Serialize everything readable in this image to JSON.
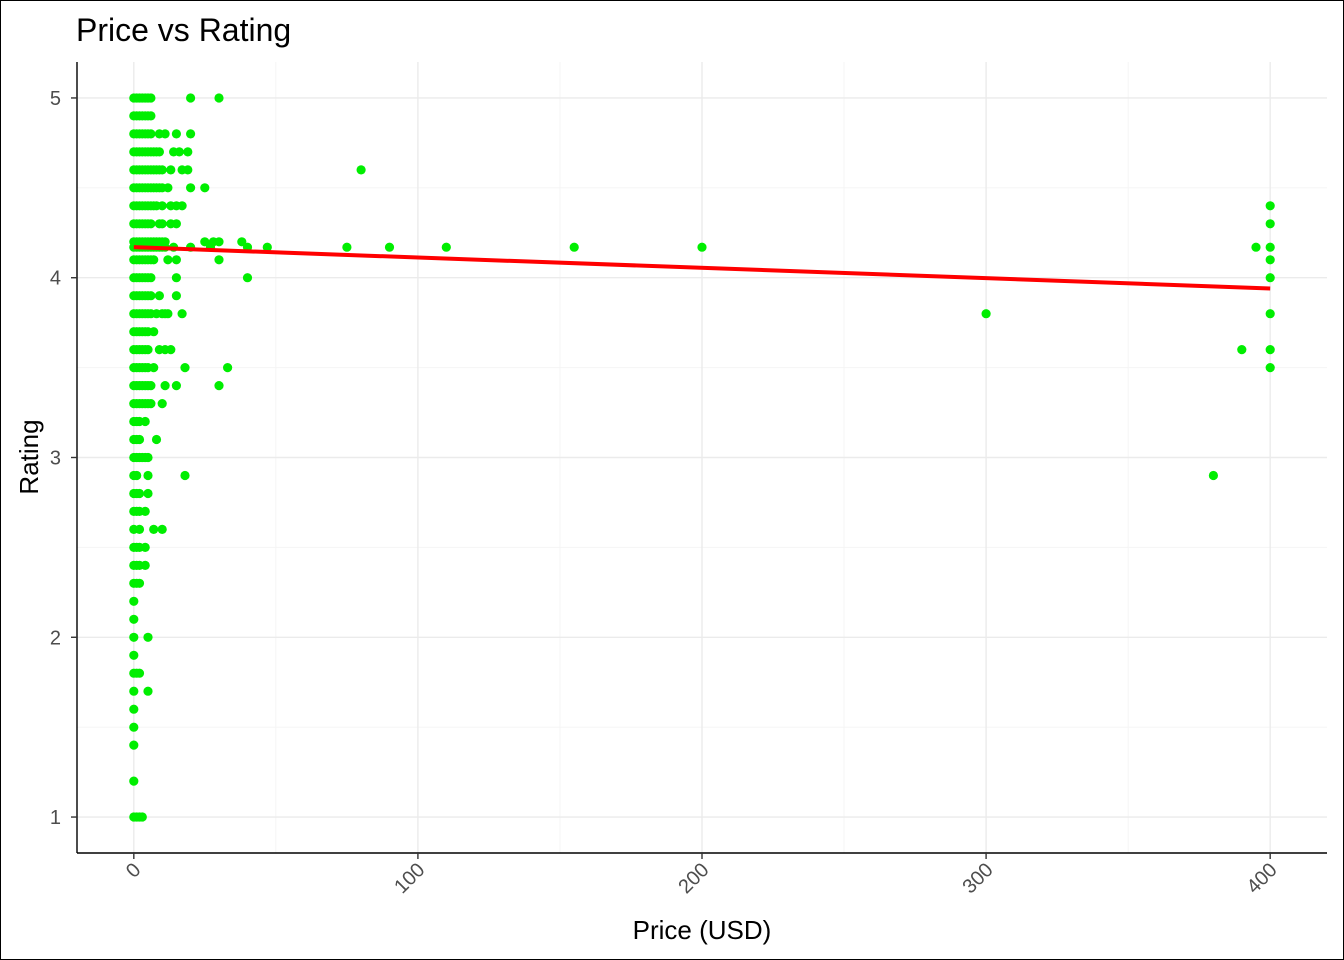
{
  "chart_data": {
    "type": "scatter",
    "title": "Price vs Rating",
    "xlabel": "Price (USD)",
    "ylabel": "Rating",
    "xlim": [
      -20,
      420
    ],
    "ylim": [
      0.8,
      5.2
    ],
    "x_ticks": [
      0,
      100,
      200,
      300,
      400
    ],
    "y_ticks": [
      1,
      2,
      3,
      4,
      5
    ],
    "x_tick_labels": [
      "0",
      "100",
      "200",
      "300",
      "400"
    ],
    "y_tick_labels": [
      "1",
      "2",
      "3",
      "4",
      "5"
    ],
    "grid": true,
    "legend": "none",
    "point_color": "#00EE00",
    "trend_color": "#FF0000",
    "trend_line": {
      "x": [
        0,
        400
      ],
      "y": [
        4.17,
        3.94
      ]
    },
    "zero_price_ratings": [
      1.0,
      1.2,
      1.4,
      1.5,
      1.6,
      1.7,
      1.8,
      1.9,
      2.0,
      2.1,
      2.2,
      2.3,
      2.4,
      2.5,
      2.6,
      2.7,
      2.8,
      2.9,
      3.0,
      3.1,
      3.2,
      3.3,
      3.4,
      3.5,
      3.6,
      3.7,
      3.8,
      3.9,
      4.0,
      4.1,
      4.17,
      4.2,
      4.3,
      4.4,
      4.5,
      4.6,
      4.7,
      4.8,
      4.9,
      5.0
    ],
    "points": [
      [
        1,
        1.0
      ],
      [
        2,
        1.0
      ],
      [
        3,
        1.0
      ],
      [
        1,
        1.8
      ],
      [
        2,
        1.8
      ],
      [
        1,
        2.3
      ],
      [
        2,
        2.3
      ],
      [
        1,
        2.4
      ],
      [
        2,
        2.4
      ],
      [
        4,
        2.4
      ],
      [
        1,
        2.5
      ],
      [
        2,
        2.5
      ],
      [
        4,
        2.5
      ],
      [
        1,
        2.7
      ],
      [
        2,
        2.7
      ],
      [
        4,
        2.7
      ],
      [
        1,
        2.8
      ],
      [
        2,
        2.8
      ],
      [
        5,
        2.8
      ],
      [
        1,
        2.9
      ],
      [
        5,
        2.9
      ],
      [
        1,
        3.0
      ],
      [
        2,
        3.0
      ],
      [
        3,
        3.0
      ],
      [
        4,
        3.0
      ],
      [
        5,
        3.0
      ],
      [
        1,
        3.1
      ],
      [
        2,
        3.1
      ],
      [
        8,
        3.1
      ],
      [
        1,
        3.2
      ],
      [
        2,
        3.2
      ],
      [
        4,
        3.2
      ],
      [
        1,
        3.3
      ],
      [
        2,
        3.3
      ],
      [
        3,
        3.3
      ],
      [
        4,
        3.3
      ],
      [
        5,
        3.3
      ],
      [
        6,
        3.3
      ],
      [
        10,
        3.3
      ],
      [
        1,
        3.4
      ],
      [
        2,
        3.4
      ],
      [
        3,
        3.4
      ],
      [
        4,
        3.4
      ],
      [
        5,
        3.4
      ],
      [
        6,
        3.4
      ],
      [
        11,
        3.4
      ],
      [
        15,
        3.4
      ],
      [
        1,
        3.5
      ],
      [
        2,
        3.5
      ],
      [
        3,
        3.5
      ],
      [
        4,
        3.5
      ],
      [
        5,
        3.5
      ],
      [
        7,
        3.5
      ],
      [
        1,
        3.6
      ],
      [
        2,
        3.6
      ],
      [
        3,
        3.6
      ],
      [
        4,
        3.6
      ],
      [
        5,
        3.6
      ],
      [
        9,
        3.6
      ],
      [
        11,
        3.6
      ],
      [
        13,
        3.6
      ],
      [
        1,
        3.7
      ],
      [
        2,
        3.7
      ],
      [
        3,
        3.7
      ],
      [
        4,
        3.7
      ],
      [
        5,
        3.7
      ],
      [
        7,
        3.7
      ],
      [
        1,
        3.8
      ],
      [
        2,
        3.8
      ],
      [
        3,
        3.8
      ],
      [
        4,
        3.8
      ],
      [
        5,
        3.8
      ],
      [
        6,
        3.8
      ],
      [
        8,
        3.8
      ],
      [
        10,
        3.8
      ],
      [
        11,
        3.8
      ],
      [
        12,
        3.8
      ],
      [
        1,
        3.9
      ],
      [
        2,
        3.9
      ],
      [
        3,
        3.9
      ],
      [
        4,
        3.9
      ],
      [
        5,
        3.9
      ],
      [
        6,
        3.9
      ],
      [
        9,
        3.9
      ],
      [
        15,
        3.9
      ],
      [
        1,
        4.0
      ],
      [
        2,
        4.0
      ],
      [
        3,
        4.0
      ],
      [
        4,
        4.0
      ],
      [
        5,
        4.0
      ],
      [
        6,
        4.0
      ],
      [
        15,
        4.0
      ],
      [
        1,
        4.1
      ],
      [
        2,
        4.1
      ],
      [
        3,
        4.1
      ],
      [
        4,
        4.1
      ],
      [
        5,
        4.1
      ],
      [
        6,
        4.1
      ],
      [
        7,
        4.1
      ],
      [
        12,
        4.1
      ],
      [
        15,
        4.1
      ],
      [
        1,
        4.17
      ],
      [
        2,
        4.17
      ],
      [
        3,
        4.17
      ],
      [
        4,
        4.17
      ],
      [
        5,
        4.17
      ],
      [
        6,
        4.17
      ],
      [
        7,
        4.17
      ],
      [
        8,
        4.17
      ],
      [
        9,
        4.17
      ],
      [
        10,
        4.17
      ],
      [
        11,
        4.17
      ],
      [
        14,
        4.17
      ],
      [
        20,
        4.17
      ],
      [
        27,
        4.17
      ],
      [
        40,
        4.17
      ],
      [
        47,
        4.17
      ],
      [
        75,
        4.17
      ],
      [
        90,
        4.17
      ],
      [
        110,
        4.17
      ],
      [
        155,
        4.17
      ],
      [
        200,
        4.17
      ],
      [
        1,
        4.2
      ],
      [
        2,
        4.2
      ],
      [
        3,
        4.2
      ],
      [
        4,
        4.2
      ],
      [
        5,
        4.2
      ],
      [
        6,
        4.2
      ],
      [
        7,
        4.2
      ],
      [
        8,
        4.2
      ],
      [
        9,
        4.2
      ],
      [
        10,
        4.2
      ],
      [
        11,
        4.2
      ],
      [
        25,
        4.2
      ],
      [
        28,
        4.2
      ],
      [
        30,
        4.2
      ],
      [
        38,
        4.2
      ],
      [
        1,
        4.3
      ],
      [
        2,
        4.3
      ],
      [
        3,
        4.3
      ],
      [
        4,
        4.3
      ],
      [
        5,
        4.3
      ],
      [
        6,
        4.3
      ],
      [
        9,
        4.3
      ],
      [
        10,
        4.3
      ],
      [
        13,
        4.3
      ],
      [
        15,
        4.3
      ],
      [
        1,
        4.4
      ],
      [
        2,
        4.4
      ],
      [
        3,
        4.4
      ],
      [
        4,
        4.4
      ],
      [
        5,
        4.4
      ],
      [
        6,
        4.4
      ],
      [
        7,
        4.4
      ],
      [
        8,
        4.4
      ],
      [
        10,
        4.4
      ],
      [
        13,
        4.4
      ],
      [
        15,
        4.4
      ],
      [
        17,
        4.4
      ],
      [
        1,
        4.5
      ],
      [
        2,
        4.5
      ],
      [
        3,
        4.5
      ],
      [
        4,
        4.5
      ],
      [
        5,
        4.5
      ],
      [
        6,
        4.5
      ],
      [
        7,
        4.5
      ],
      [
        8,
        4.5
      ],
      [
        9,
        4.5
      ],
      [
        10,
        4.5
      ],
      [
        12,
        4.5
      ],
      [
        20,
        4.5
      ],
      [
        25,
        4.5
      ],
      [
        1,
        4.6
      ],
      [
        2,
        4.6
      ],
      [
        3,
        4.6
      ],
      [
        4,
        4.6
      ],
      [
        5,
        4.6
      ],
      [
        6,
        4.6
      ],
      [
        7,
        4.6
      ],
      [
        8,
        4.6
      ],
      [
        9,
        4.6
      ],
      [
        10,
        4.6
      ],
      [
        13,
        4.6
      ],
      [
        17,
        4.6
      ],
      [
        19,
        4.6
      ],
      [
        80,
        4.6
      ],
      [
        1,
        4.7
      ],
      [
        2,
        4.7
      ],
      [
        3,
        4.7
      ],
      [
        4,
        4.7
      ],
      [
        5,
        4.7
      ],
      [
        6,
        4.7
      ],
      [
        7,
        4.7
      ],
      [
        8,
        4.7
      ],
      [
        9,
        4.7
      ],
      [
        14,
        4.7
      ],
      [
        16,
        4.7
      ],
      [
        19,
        4.7
      ],
      [
        1,
        4.8
      ],
      [
        2,
        4.8
      ],
      [
        3,
        4.8
      ],
      [
        4,
        4.8
      ],
      [
        5,
        4.8
      ],
      [
        6,
        4.8
      ],
      [
        9,
        4.8
      ],
      [
        11,
        4.8
      ],
      [
        15,
        4.8
      ],
      [
        20,
        4.8
      ],
      [
        1,
        4.9
      ],
      [
        2,
        4.9
      ],
      [
        3,
        4.9
      ],
      [
        4,
        4.9
      ],
      [
        5,
        4.9
      ],
      [
        6,
        4.9
      ],
      [
        1,
        5.0
      ],
      [
        2,
        5.0
      ],
      [
        3,
        5.0
      ],
      [
        4,
        5.0
      ],
      [
        5,
        5.0
      ],
      [
        6,
        5.0
      ],
      [
        20,
        5.0
      ],
      [
        30,
        5.0
      ],
      [
        18,
        2.9
      ],
      [
        18,
        3.5
      ],
      [
        30,
        3.4
      ],
      [
        33,
        3.5
      ],
      [
        40,
        4.0
      ],
      [
        30,
        4.1
      ],
      [
        17,
        3.8
      ],
      [
        2,
        2.6
      ],
      [
        7,
        2.6
      ],
      [
        10,
        2.6
      ],
      [
        5,
        2.0
      ],
      [
        5,
        1.7
      ],
      [
        300,
        3.8
      ],
      [
        380,
        2.9
      ],
      [
        390,
        3.6
      ],
      [
        395,
        4.17
      ],
      [
        400,
        4.4
      ],
      [
        400,
        4.3
      ],
      [
        400,
        4.17
      ],
      [
        400,
        4.1
      ],
      [
        400,
        4.0
      ],
      [
        400,
        3.8
      ],
      [
        400,
        3.6
      ],
      [
        400,
        3.5
      ]
    ]
  }
}
